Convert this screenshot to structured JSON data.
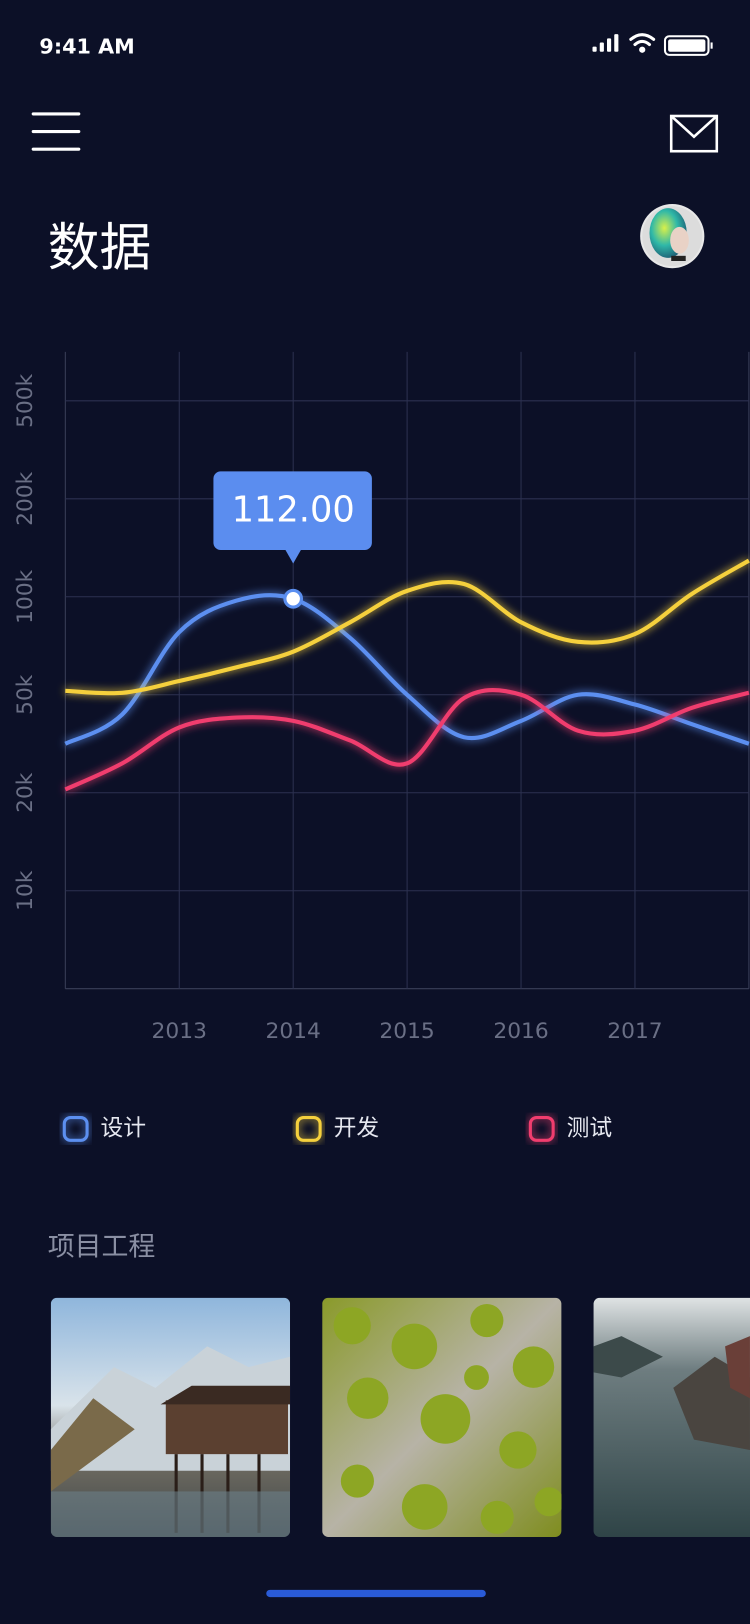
{
  "status_bar": {
    "time": "9:41 AM"
  },
  "header": {
    "title": "数据"
  },
  "chart_data": {
    "type": "line",
    "annotation": "112.00",
    "x": [
      2012,
      2012.5,
      2013,
      2013.5,
      2014,
      2014.5,
      2015,
      2015.5,
      2016,
      2016.5,
      2017,
      2017.5,
      2018
    ],
    "xlim": [
      2012,
      2018
    ],
    "xticks": [
      2013,
      2014,
      2015,
      2016,
      2017
    ],
    "ylim": [
      0,
      650000
    ],
    "yticks": [
      {
        "value": 10000,
        "label": "10k"
      },
      {
        "value": 20000,
        "label": "20k"
      },
      {
        "value": 50000,
        "label": "50k"
      },
      {
        "value": 100000,
        "label": "100k"
      },
      {
        "value": 200000,
        "label": "200k"
      },
      {
        "value": 500000,
        "label": "500k"
      }
    ],
    "grid": true,
    "series": [
      {
        "name": "设计",
        "color": "#5b8ff0",
        "values": [
          35000,
          44000,
          82000,
          98000,
          99000,
          79000,
          50000,
          37000,
          42000,
          50000,
          47000,
          41000,
          35000
        ]
      },
      {
        "name": "开发",
        "color": "#f5d03c",
        "values": [
          52000,
          51000,
          57000,
          64000,
          72000,
          87000,
          106000,
          113000,
          87000,
          77000,
          81000,
          103000,
          137000
        ]
      },
      {
        "name": "测试",
        "color": "#f03c6e",
        "values": [
          21000,
          29000,
          40000,
          43000,
          42000,
          36000,
          29000,
          49000,
          50000,
          39000,
          39000,
          46000,
          51000
        ]
      }
    ]
  },
  "projects": {
    "title": "项目工程"
  }
}
